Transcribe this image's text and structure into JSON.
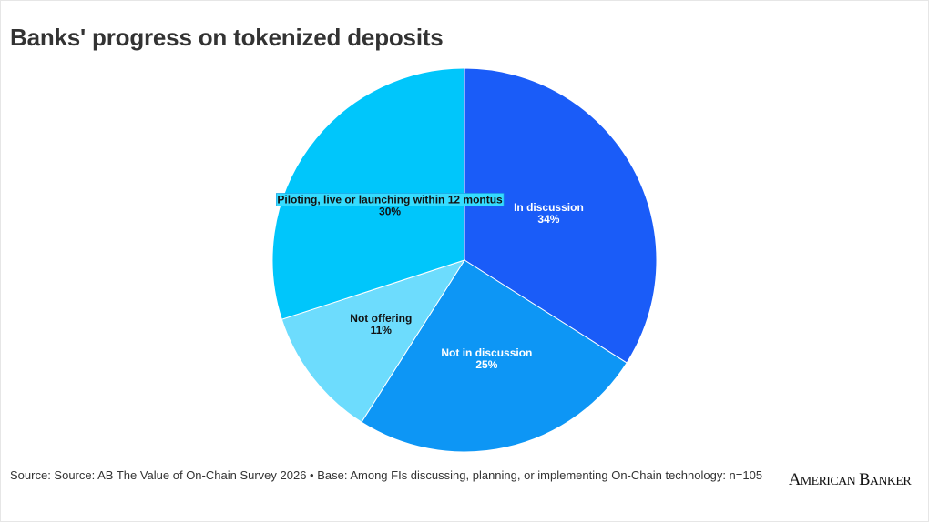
{
  "title": "Banks' progress on tokenized deposits",
  "footer": "Source: Source: AB The Value of On-Chain Survey 2026 • Base: Among FIs discussing, planning, or implementing On-Chain technology: n=105",
  "brand": "American Banker",
  "chart_data": {
    "type": "pie",
    "title": "Banks' progress on tokenized deposits",
    "slices": [
      {
        "label": "In discussion",
        "value": 34,
        "display": "34%",
        "color": "#1a5cf8",
        "text_color": "#ffffff"
      },
      {
        "label": "Not in discussion",
        "value": 25,
        "display": "25%",
        "color": "#0d96f5",
        "text_color": "#ffffff"
      },
      {
        "label": "Not offering",
        "value": 11,
        "display": "11%",
        "color": "#6ddcfd",
        "text_color": "#111111"
      },
      {
        "label": "Piloting, live or launching within 12 montus",
        "value": 30,
        "display": "30%",
        "color": "#00c6fb",
        "text_color": "#111111",
        "label_highlight": "#35dcff"
      }
    ],
    "start_angle_deg": 0,
    "direction": "clockwise"
  }
}
